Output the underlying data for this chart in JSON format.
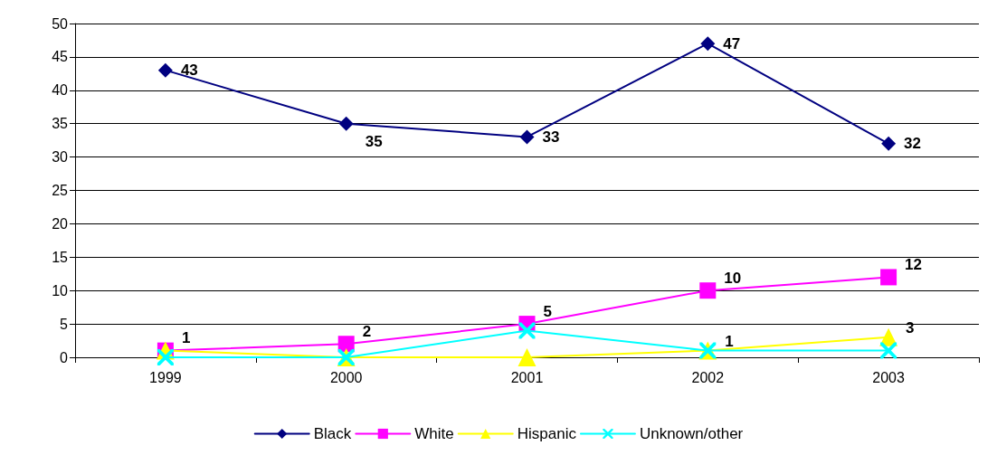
{
  "chart_data": {
    "type": "line",
    "categories": [
      "1999",
      "2000",
      "2001",
      "2002",
      "2003"
    ],
    "series": [
      {
        "name": "Black",
        "color": "#000080",
        "marker": "diamond",
        "values": [
          43,
          35,
          33,
          47,
          32
        ],
        "value_labels": [
          "43",
          "35",
          "33",
          "47",
          "32"
        ]
      },
      {
        "name": "White",
        "color": "#ff00ff",
        "marker": "square",
        "values": [
          1,
          2,
          5,
          10,
          12
        ],
        "value_labels": [
          "1",
          "2",
          "5",
          "10",
          "12"
        ]
      },
      {
        "name": "Hispanic",
        "color": "#ffff00",
        "marker": "triangle",
        "values": [
          1,
          0,
          0,
          1,
          3
        ],
        "value_labels": [
          null,
          null,
          null,
          "1",
          "3"
        ]
      },
      {
        "name": "Unknown/other",
        "color": "#00ffff",
        "marker": "cross",
        "values": [
          0,
          0,
          4,
          1,
          1
        ]
      }
    ],
    "ylim": [
      0,
      50
    ],
    "yticks": [
      0,
      5,
      10,
      15,
      20,
      25,
      30,
      35,
      40,
      45,
      50
    ],
    "grid": "y",
    "legend": "bottom",
    "line_style": "solid"
  }
}
